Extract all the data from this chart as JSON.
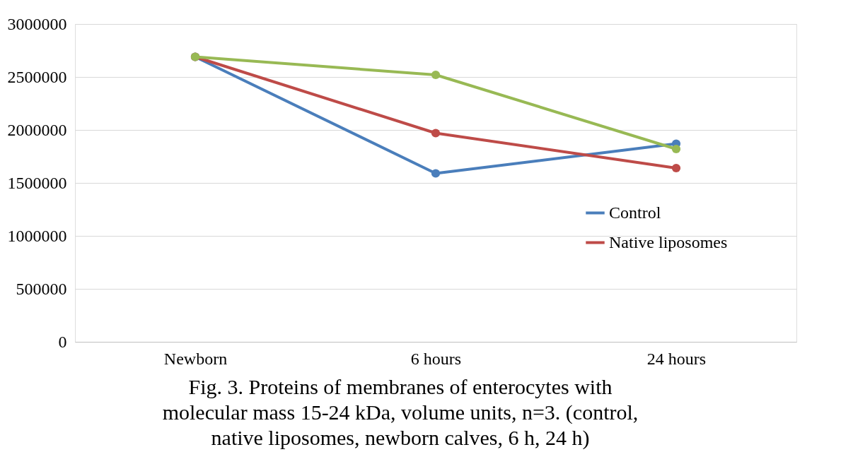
{
  "chart_data": {
    "type": "line",
    "categories": [
      "Newborn",
      "6 hours",
      "24 hours"
    ],
    "series": [
      {
        "name": "Control",
        "color": "#4a7ebb",
        "values": [
          2690000,
          1590000,
          1870000
        ]
      },
      {
        "name": "Native liposomes",
        "color": "#be4b48",
        "values": [
          2690000,
          1970000,
          1640000
        ]
      },
      {
        "color": "#98b954",
        "values": [
          2690000,
          2520000,
          1820000
        ]
      }
    ],
    "ylim": [
      0,
      3000000
    ],
    "yticks": [
      0,
      500000,
      1000000,
      1500000,
      2000000,
      2500000,
      3000000
    ],
    "grid": "y",
    "legend": "right",
    "marker": "circle",
    "line_style": "solid",
    "annotations": [
      "Fig. 3. Proteins of  membranes of enterocytes with molecular mass 15-24 kDa, volume units, n=3. (control, native liposomes, newborn calves, 6 h, 24 h)"
    ]
  }
}
